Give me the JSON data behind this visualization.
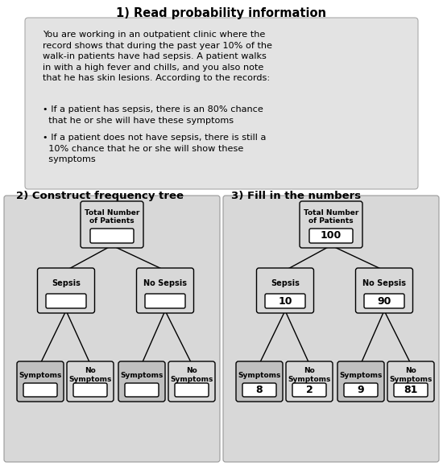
{
  "title1": "1) Read probability information",
  "paragraph_line1": "You are working in an outpatient clinic where the",
  "paragraph_line2": "record shows that during the past year 10% of the",
  "paragraph_line3": "walk-in patients have had sepsis. A patient walks",
  "paragraph_line4": "in with a high fever and chills, and you also note",
  "paragraph_line5": "that he has skin lesions. According to the records:",
  "bullet1_line1": "• If a patient has sepsis, there is an 80% chance",
  "bullet1_line2": "  that he or she will have these symptoms",
  "bullet2_line1": "• If a patient does not have sepsis, there is still a",
  "bullet2_line2": "  10% chance that he or she will show these",
  "bullet2_line3": "  symptoms",
  "title2": "2) Construct frequency tree",
  "title3": "3) Fill in the numbers",
  "bg_gray": "#e3e3e3",
  "panel_gray": "#d8d8d8",
  "leaf_dark": "#c0c0c0",
  "white": "#ffffff",
  "black": "#000000",
  "right_values": {
    "root": "100",
    "left": "10",
    "right": "90",
    "ll": "8",
    "lr": "2",
    "rl": "9",
    "rr": "81"
  },
  "root_label": "Total Number\nof Patients",
  "left_label": "Sepsis",
  "right_label": "No Sepsis",
  "sym_label": "Symptoms",
  "nosym_label": "No\nSymptoms"
}
